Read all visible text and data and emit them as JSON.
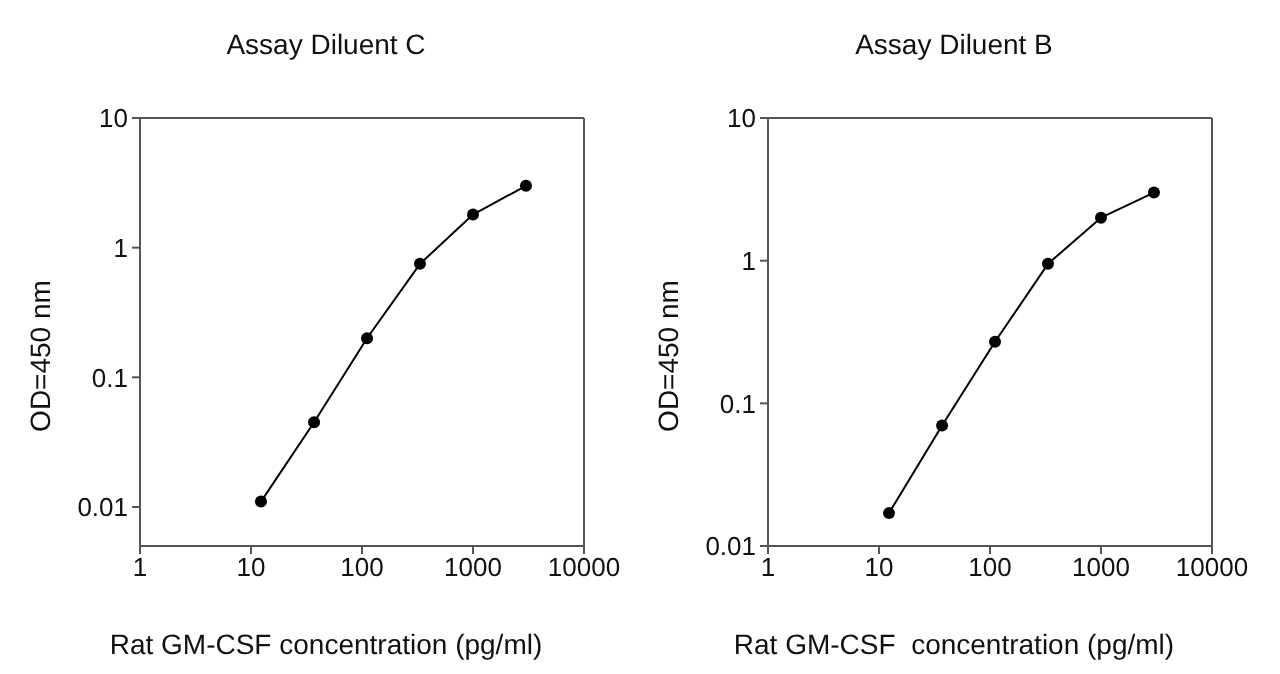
{
  "chart_data": [
    {
      "type": "line",
      "title": "Assay Diluent C",
      "xlabel": "Rat GM-CSF concentration (pg/ml)",
      "ylabel": "OD=450 nm",
      "log": "xy",
      "xlim": [
        1,
        10000
      ],
      "xticks": [
        1,
        10,
        100,
        1000,
        10000
      ],
      "ylim": [
        0.005,
        10
      ],
      "yticks": [
        0.01,
        0.1,
        1,
        10
      ],
      "marker": "circle",
      "line_style": "solid",
      "x": [
        12.3,
        37,
        111,
        333,
        1000,
        3000
      ],
      "series": [
        {
          "color": "#000000",
          "values": [
            0.011,
            0.045,
            0.2,
            0.75,
            1.8,
            3.0
          ]
        }
      ]
    },
    {
      "type": "line",
      "title": "Assay Diluent B",
      "xlabel": "Rat GM-CSF  concentration (pg/ml)",
      "ylabel": "OD=450 nm",
      "log": "xy",
      "xlim": [
        1,
        10000
      ],
      "xticks": [
        1,
        10,
        100,
        1000,
        10000
      ],
      "ylim": [
        0.01,
        10
      ],
      "yticks": [
        0.01,
        0.1,
        1,
        10
      ],
      "marker": "circle",
      "line_style": "solid",
      "x": [
        12.3,
        37,
        111,
        333,
        1000,
        3000
      ],
      "series": [
        {
          "color": "#000000",
          "values": [
            0.017,
            0.07,
            0.27,
            0.95,
            2.0,
            3.0
          ]
        }
      ]
    }
  ]
}
